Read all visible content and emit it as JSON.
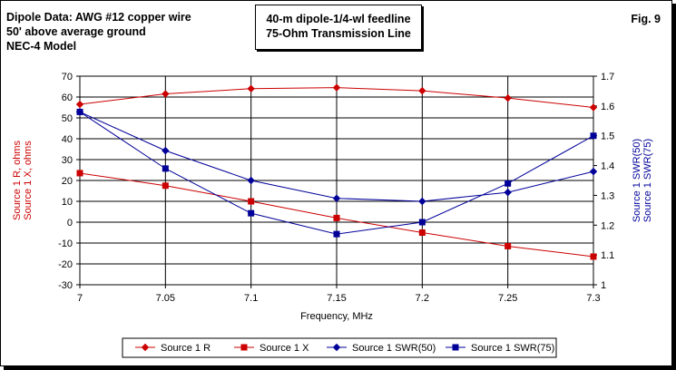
{
  "header": {
    "left_lines": [
      "Dipole Data:  AWG #12 copper wire",
      "50' above average ground",
      "NEC-4 Model"
    ],
    "title_lines": [
      "40-m dipole-1/4-wl feedline",
      "75-Ohm Transmission Line"
    ],
    "fig_label": "Fig. 9"
  },
  "chart_data": {
    "type": "line",
    "x": [
      7,
      7.05,
      7.1,
      7.15,
      7.2,
      7.25,
      7.3
    ],
    "xlim": [
      7,
      7.3
    ],
    "xticks": [
      "7",
      "7.05",
      "7.1",
      "7.15",
      "7.2",
      "7.25",
      "7.3"
    ],
    "xlabel": "Frequency, MHz",
    "ylim_left": [
      -30,
      70
    ],
    "yticks_left": [
      "70",
      "60",
      "50",
      "40",
      "30",
      "20",
      "10",
      "0",
      "-10",
      "-20",
      "-30"
    ],
    "ylabel_left": [
      "Source 1 R,  ohms",
      "Source 1 X,  ohms"
    ],
    "ylim_right": [
      1,
      1.7
    ],
    "yticks_right": [
      "1.7",
      "1.6",
      "1.5",
      "1.4",
      "1.3",
      "1.2",
      "1.1",
      "1"
    ],
    "ylabel_right": [
      "Source 1 SWR(50)",
      "Source 1 SWR(75)"
    ],
    "grid": "horizontal and vertical",
    "legend_position": "bottom",
    "series": [
      {
        "name": "Source 1 R",
        "axis": "left",
        "marker": "diamond",
        "color": "#cc0000",
        "values": [
          56.5,
          61.5,
          64.0,
          64.5,
          63.0,
          59.5,
          55.0
        ]
      },
      {
        "name": "Source 1 X",
        "axis": "left",
        "marker": "square",
        "color": "#cc0000",
        "values": [
          23.5,
          17.5,
          10.0,
          2.0,
          -5.0,
          -11.5,
          -16.5
        ]
      },
      {
        "name": "Source 1 SWR(50)",
        "axis": "right",
        "marker": "diamond",
        "color": "#000099",
        "values": [
          1.58,
          1.45,
          1.35,
          1.29,
          1.28,
          1.31,
          1.38
        ]
      },
      {
        "name": "Source 1 SWR(75)",
        "axis": "right",
        "marker": "square",
        "color": "#000099",
        "values": [
          1.58,
          1.39,
          1.24,
          1.17,
          1.21,
          1.34,
          1.5
        ]
      }
    ]
  }
}
